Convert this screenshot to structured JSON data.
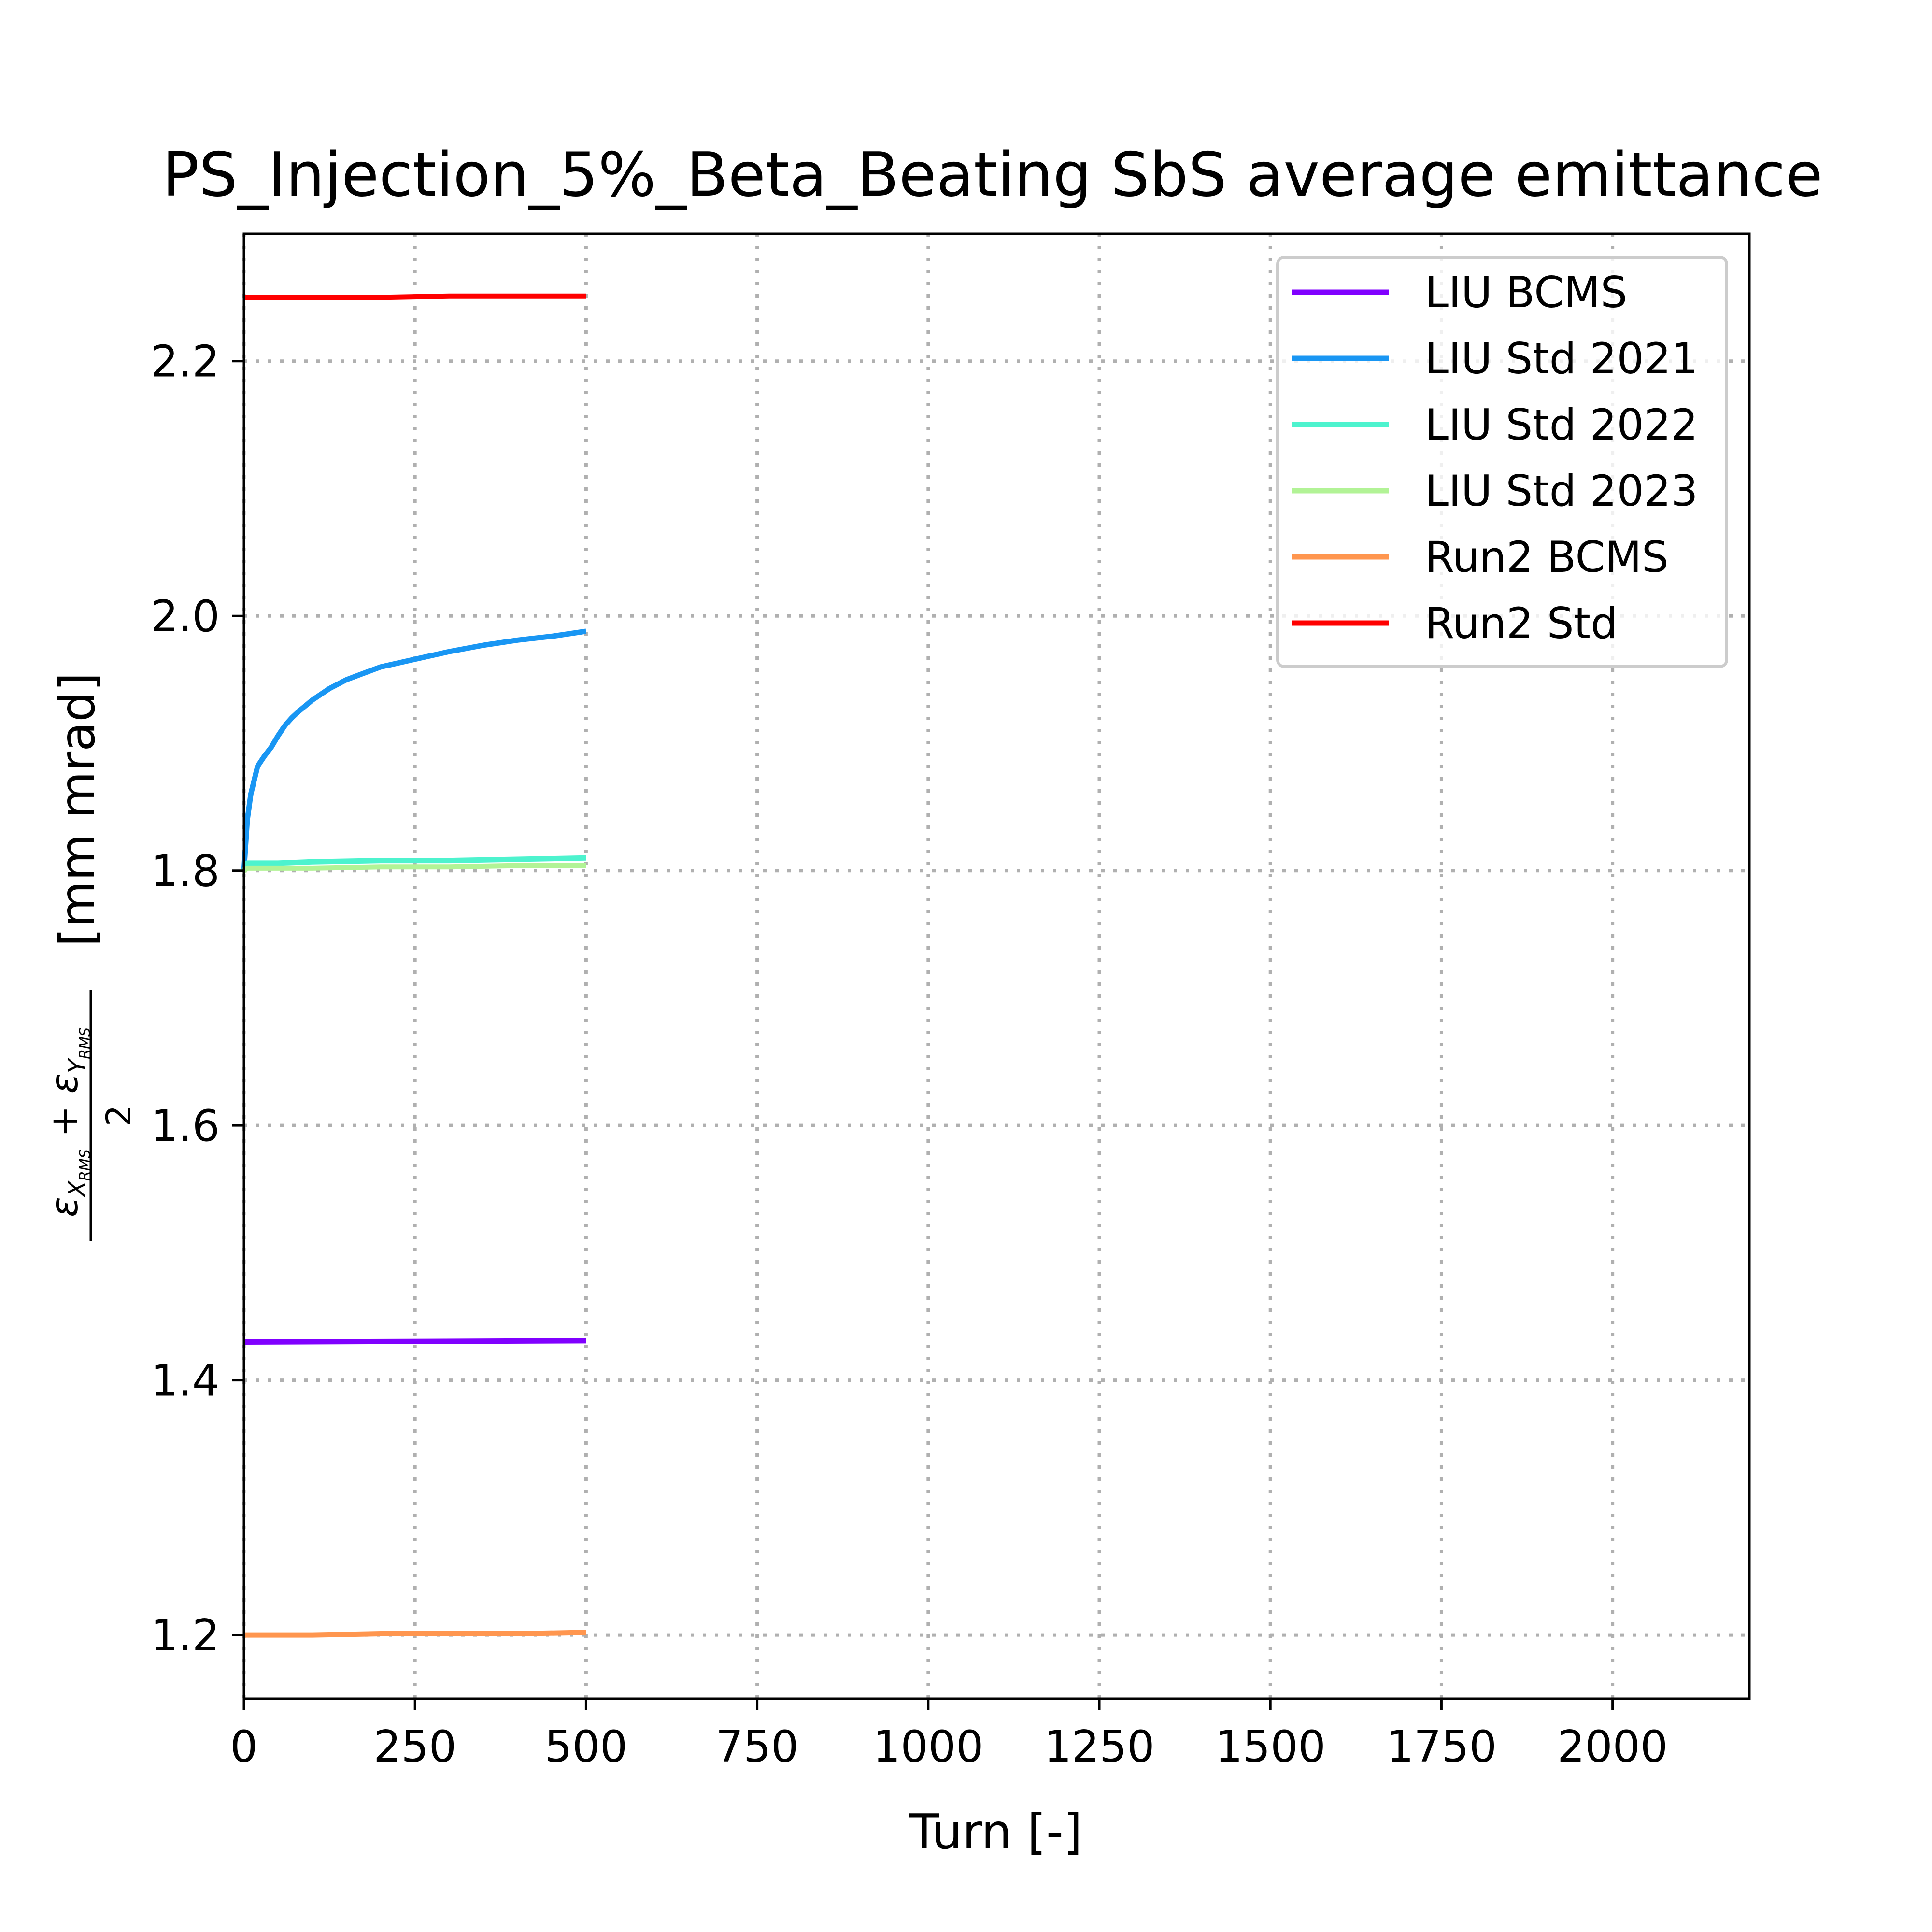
{
  "chart_data": {
    "type": "line",
    "title": "PS_Injection_5%_Beta_Beating SbS average emittance",
    "xlabel": "Turn [-]",
    "ylabel": {
      "numerator_left": "ε",
      "numerator_left_sub": "X",
      "numerator_left_subsub": "RMS",
      "plus": " + ",
      "numerator_right": "ε",
      "numerator_right_sub": "Y",
      "numerator_right_subsub": "RMS",
      "denominator": "2",
      "units": "[mm mrad]"
    },
    "xlim": [
      0,
      2200
    ],
    "ylim": [
      1.15,
      2.3
    ],
    "xticks": [
      0,
      250,
      500,
      750,
      1000,
      1250,
      1500,
      1750,
      2000
    ],
    "xtick_labels": [
      "0",
      "250",
      "500",
      "750",
      "1000",
      "1250",
      "1500",
      "1750",
      "2000"
    ],
    "yticks": [
      1.2,
      1.4,
      1.6,
      1.8,
      2.0,
      2.2
    ],
    "ytick_labels": [
      "1.2",
      "1.4",
      "1.6",
      "1.8",
      "2.0",
      "2.2"
    ],
    "grid": true,
    "legend_position": "top-right",
    "series": [
      {
        "name": "LIU BCMS",
        "color": "#8000ff",
        "x": [
          0,
          500
        ],
        "y": [
          1.43,
          1.431
        ]
      },
      {
        "name": "LIU Std 2021",
        "color": "#1996f3",
        "x": [
          0,
          5,
          10,
          20,
          30,
          40,
          50,
          60,
          70,
          80,
          100,
          125,
          150,
          175,
          200,
          250,
          300,
          350,
          400,
          450,
          500
        ],
        "y": [
          1.8,
          1.84,
          1.86,
          1.882,
          1.89,
          1.897,
          1.906,
          1.914,
          1.92,
          1.925,
          1.934,
          1.943,
          1.95,
          1.955,
          1.96,
          1.966,
          1.972,
          1.977,
          1.981,
          1.984,
          1.988
        ]
      },
      {
        "name": "LIU Std 2022",
        "color": "#4df3ce",
        "x": [
          0,
          5,
          50,
          100,
          200,
          300,
          400,
          500
        ],
        "y": [
          1.8,
          1.806,
          1.806,
          1.807,
          1.808,
          1.808,
          1.809,
          1.81
        ]
      },
      {
        "name": "LIU Std 2023",
        "color": "#b2f396",
        "x": [
          0,
          5,
          100,
          200,
          300,
          400,
          500
        ],
        "y": [
          1.8,
          1.802,
          1.802,
          1.803,
          1.803,
          1.804,
          1.804
        ]
      },
      {
        "name": "Run2 BCMS",
        "color": "#ff964f",
        "x": [
          0,
          100,
          200,
          300,
          400,
          500
        ],
        "y": [
          1.2,
          1.2,
          1.201,
          1.201,
          1.201,
          1.202
        ]
      },
      {
        "name": "Run2 Std",
        "color": "#ff0000",
        "x": [
          0,
          100,
          200,
          300,
          400,
          500
        ],
        "y": [
          2.25,
          2.25,
          2.25,
          2.251,
          2.251,
          2.251
        ]
      }
    ]
  }
}
